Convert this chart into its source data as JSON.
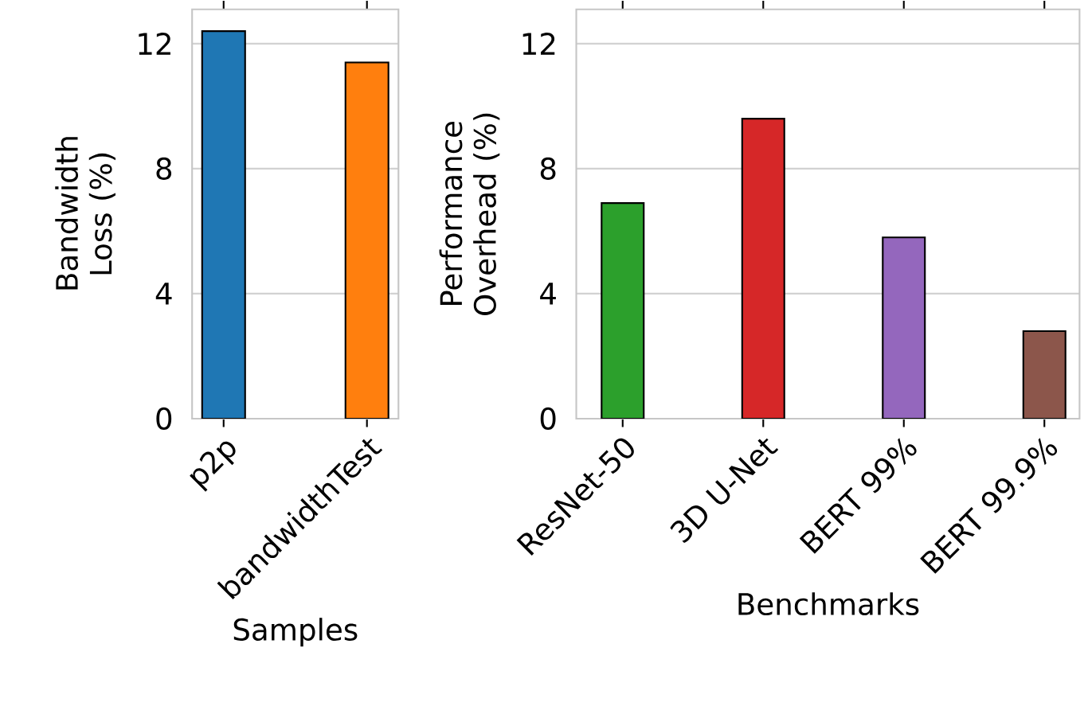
{
  "chart_data": [
    {
      "type": "bar",
      "ylabel": "Bandwidth Loss (%)",
      "xlabel": "Samples",
      "categories": [
        "p2p",
        "bandwidthTest"
      ],
      "values": [
        12.4,
        11.4
      ],
      "colors": [
        "#1f77b4",
        "#ff7f0e"
      ],
      "ylim": [
        0,
        13.1
      ],
      "yticks": [
        0,
        4,
        8,
        12
      ],
      "grid": "y"
    },
    {
      "type": "bar",
      "ylabel": "Performance Overhead (%)",
      "xlabel": "Benchmarks",
      "categories": [
        "ResNet-50",
        "3D U-Net",
        "BERT 99%",
        "BERT 99.9%"
      ],
      "values": [
        6.9,
        9.6,
        5.8,
        2.8
      ],
      "colors": [
        "#2ca02c",
        "#d62728",
        "#9467bd",
        "#8c564b"
      ],
      "ylim": [
        0,
        13.1
      ],
      "yticks": [
        0,
        4,
        8,
        12
      ],
      "grid": "y"
    }
  ]
}
